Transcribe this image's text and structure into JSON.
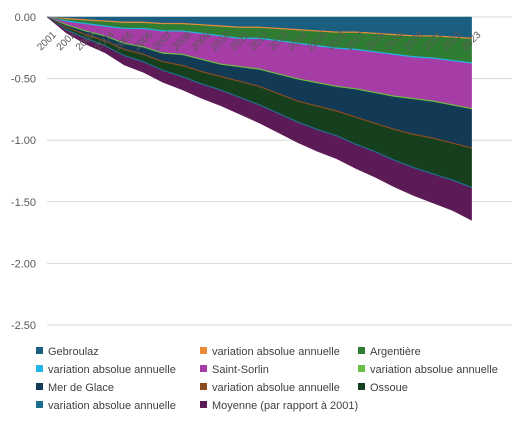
{
  "chart_data": {
    "type": "area",
    "stacked": true,
    "title": "",
    "xlabel": "",
    "ylabel": "",
    "ylim": [
      -2.5,
      0
    ],
    "y_ticks": [
      "0.00",
      "-0.50",
      "-1.00",
      "-1.50",
      "-2.00",
      "-2.50"
    ],
    "categories": [
      "2001",
      "2002",
      "2003",
      "2004",
      "2005",
      "2006",
      "2007",
      "2008",
      "2009",
      "2010",
      "2011",
      "2012",
      "2013",
      "2014",
      "2015",
      "2016",
      "2017",
      "2018",
      "2019",
      "2020",
      "2021",
      "2022",
      "2023"
    ],
    "legend_position": "bottom",
    "series": [
      {
        "name": "Gebroulaz",
        "color": "#1a5f80",
        "values": [
          0,
          -0.01,
          -0.02,
          -0.03,
          -0.04,
          -0.04,
          -0.05,
          -0.05,
          -0.06,
          -0.07,
          -0.08,
          -0.08,
          -0.09,
          -0.1,
          -0.11,
          -0.12,
          -0.12,
          -0.13,
          -0.14,
          -0.15,
          -0.15,
          -0.16,
          -0.17
        ]
      },
      {
        "name": "variation absolue annuelle",
        "color": "#e88c3a",
        "values": [
          0,
          -0.01,
          -0.01,
          -0.01,
          -0.01,
          -0.01,
          -0.01,
          -0.01,
          -0.01,
          -0.01,
          -0.01,
          -0.01,
          -0.01,
          -0.01,
          -0.01,
          -0.01,
          -0.01,
          -0.01,
          -0.01,
          -0.01,
          -0.01,
          -0.01,
          -0.01
        ]
      },
      {
        "name": "Argentière",
        "color": "#2e7d32",
        "values": [
          0,
          -0.01,
          -0.02,
          -0.03,
          -0.04,
          -0.04,
          -0.05,
          -0.05,
          -0.06,
          -0.07,
          -0.08,
          -0.08,
          -0.09,
          -0.1,
          -0.11,
          -0.12,
          -0.13,
          -0.14,
          -0.15,
          -0.16,
          -0.17,
          -0.18,
          -0.19
        ]
      },
      {
        "name": "variation absolue annuelle",
        "color": "#22b4e6",
        "values": [
          0,
          -0.01,
          -0.01,
          -0.01,
          -0.01,
          -0.01,
          -0.01,
          -0.01,
          -0.01,
          -0.01,
          -0.01,
          -0.01,
          -0.01,
          -0.01,
          -0.01,
          -0.01,
          -0.01,
          -0.01,
          -0.01,
          -0.01,
          -0.01,
          -0.01,
          -0.01
        ]
      },
      {
        "name": "Saint-Sorlin",
        "color": "#a63ca6",
        "values": [
          0,
          -0.02,
          -0.05,
          -0.07,
          -0.11,
          -0.14,
          -0.17,
          -0.18,
          -0.2,
          -0.22,
          -0.22,
          -0.24,
          -0.26,
          -0.28,
          -0.29,
          -0.3,
          -0.31,
          -0.32,
          -0.33,
          -0.33,
          -0.34,
          -0.35,
          -0.36
        ]
      },
      {
        "name": "variation absolue annuelle",
        "color": "#6bbf45",
        "values": [
          0,
          -0.01,
          -0.01,
          -0.01,
          -0.01,
          -0.01,
          -0.01,
          -0.01,
          -0.01,
          -0.01,
          -0.01,
          -0.01,
          -0.01,
          -0.01,
          -0.01,
          -0.01,
          -0.01,
          -0.01,
          -0.01,
          -0.01,
          -0.01,
          -0.01,
          -0.01
        ]
      },
      {
        "name": "Mer de Glace",
        "color": "#133a54",
        "values": [
          0,
          -0.01,
          -0.02,
          -0.03,
          -0.04,
          -0.05,
          -0.06,
          -0.08,
          -0.09,
          -0.09,
          -0.11,
          -0.13,
          -0.15,
          -0.17,
          -0.18,
          -0.19,
          -0.22,
          -0.24,
          -0.26,
          -0.28,
          -0.29,
          -0.3,
          -0.31
        ]
      },
      {
        "name": "variation absolue annuelle",
        "color": "#8b4a1f",
        "values": [
          0,
          -0.01,
          -0.01,
          -0.01,
          -0.01,
          -0.01,
          -0.01,
          -0.01,
          -0.01,
          -0.01,
          -0.01,
          -0.01,
          -0.01,
          -0.01,
          -0.01,
          -0.01,
          -0.01,
          -0.01,
          -0.01,
          -0.01,
          -0.01,
          -0.01,
          -0.01
        ]
      },
      {
        "name": "Ossoue",
        "color": "#16401d",
        "values": [
          0,
          -0.01,
          -0.02,
          -0.03,
          -0.04,
          -0.05,
          -0.06,
          -0.08,
          -0.09,
          -0.1,
          -0.12,
          -0.14,
          -0.15,
          -0.16,
          -0.18,
          -0.19,
          -0.21,
          -0.22,
          -0.24,
          -0.26,
          -0.28,
          -0.29,
          -0.31
        ]
      },
      {
        "name": "variation absolue annuelle",
        "color": "#1d6f91",
        "values": [
          0,
          -0.01,
          -0.01,
          -0.01,
          -0.01,
          -0.01,
          -0.01,
          -0.01,
          -0.01,
          -0.01,
          -0.01,
          -0.01,
          -0.01,
          -0.01,
          -0.01,
          -0.01,
          -0.01,
          -0.01,
          -0.01,
          -0.01,
          -0.01,
          -0.01,
          -0.01
        ]
      },
      {
        "name": "Moyenne (par rapport à 2001)",
        "color": "#5c1a56",
        "values": [
          0,
          -0.02,
          -0.04,
          -0.05,
          -0.07,
          -0.08,
          -0.09,
          -0.1,
          -0.11,
          -0.12,
          -0.13,
          -0.14,
          -0.15,
          -0.16,
          -0.17,
          -0.18,
          -0.19,
          -0.2,
          -0.21,
          -0.22,
          -0.23,
          -0.24,
          -0.26
        ]
      }
    ]
  }
}
